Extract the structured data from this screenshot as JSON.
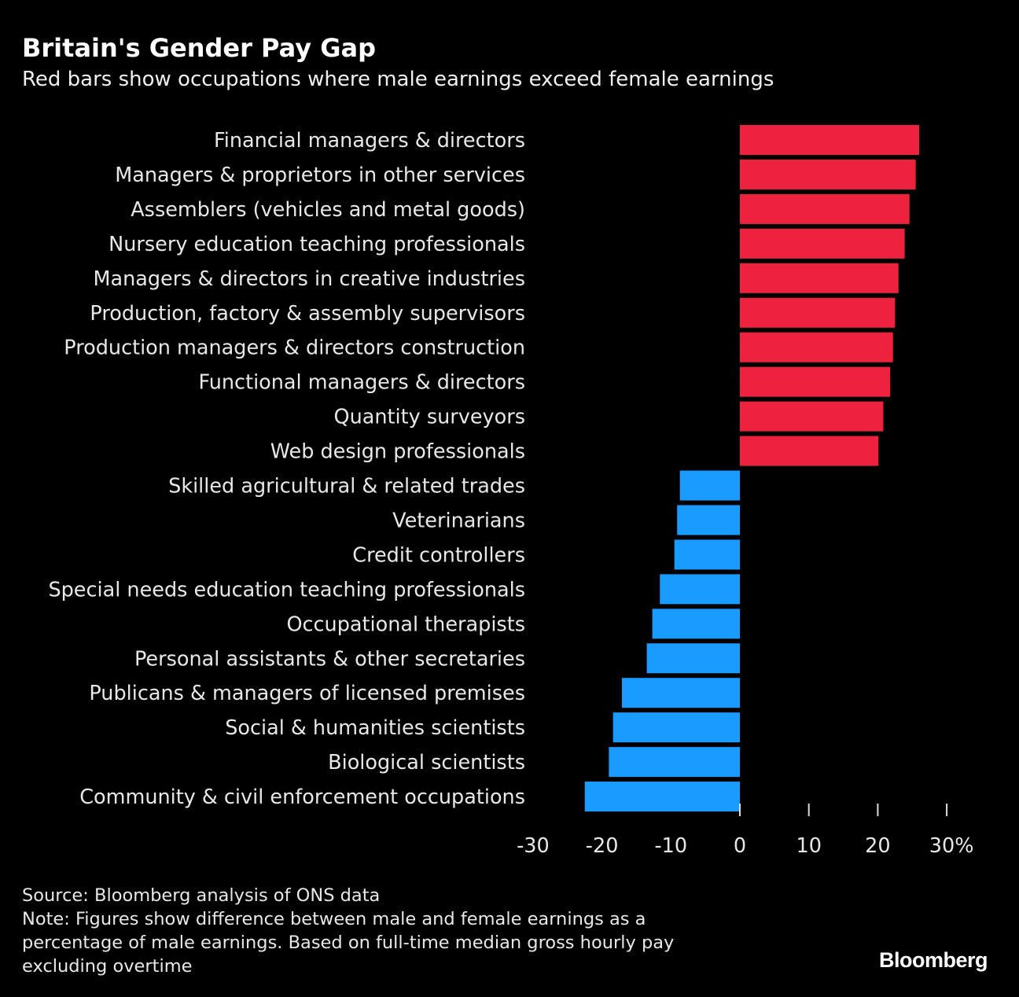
{
  "chart_data": {
    "type": "bar",
    "orientation": "horizontal",
    "title": "Britain's Gender Pay Gap",
    "subtitle": "Red bars show occupations where male earnings exceed female earnings",
    "categories": [
      "Financial managers & directors",
      "Managers & proprietors in other services",
      "Assemblers (vehicles and metal goods)",
      "Nursery education teaching professionals",
      "Managers & directors in creative industries",
      "Production, factory & assembly supervisors",
      "Production managers & directors construction",
      "Functional managers & directors",
      "Quantity surveyors",
      "Web design professionals",
      "Skilled agricultural & related trades",
      "Veterinarians",
      "Credit controllers",
      "Special needs education teaching professionals",
      "Occupational therapists",
      "Personal assistants & other secretaries",
      "Publicans & managers of licensed premises",
      "Social & humanities scientists",
      "Biological scientists",
      "Community & civil enforcement occupations"
    ],
    "values": [
      26.0,
      25.5,
      24.6,
      23.9,
      23.0,
      22.5,
      22.2,
      21.8,
      20.8,
      20.1,
      -8.7,
      -9.1,
      -9.5,
      -11.6,
      -12.7,
      -13.5,
      -17.1,
      -18.4,
      -19.0,
      -22.5
    ],
    "xlim": [
      -30,
      30
    ],
    "xticks": [
      -30,
      -20,
      -10,
      0,
      10,
      20,
      30
    ],
    "xtick_labels": [
      "-30",
      "-20",
      "-10",
      "0",
      "10",
      "20",
      "30%"
    ],
    "grid": false,
    "colors": {
      "positive": "#ee223f",
      "negative": "#1a9bff"
    }
  },
  "footer": {
    "source": "Source: Bloomberg analysis of ONS data",
    "note_lines": [
      "Note: Figures show difference between male and female earnings as a",
      "percentage of male earnings. Based on full-time median gross hourly pay",
      "excluding overtime"
    ]
  },
  "logo": "Bloomberg"
}
